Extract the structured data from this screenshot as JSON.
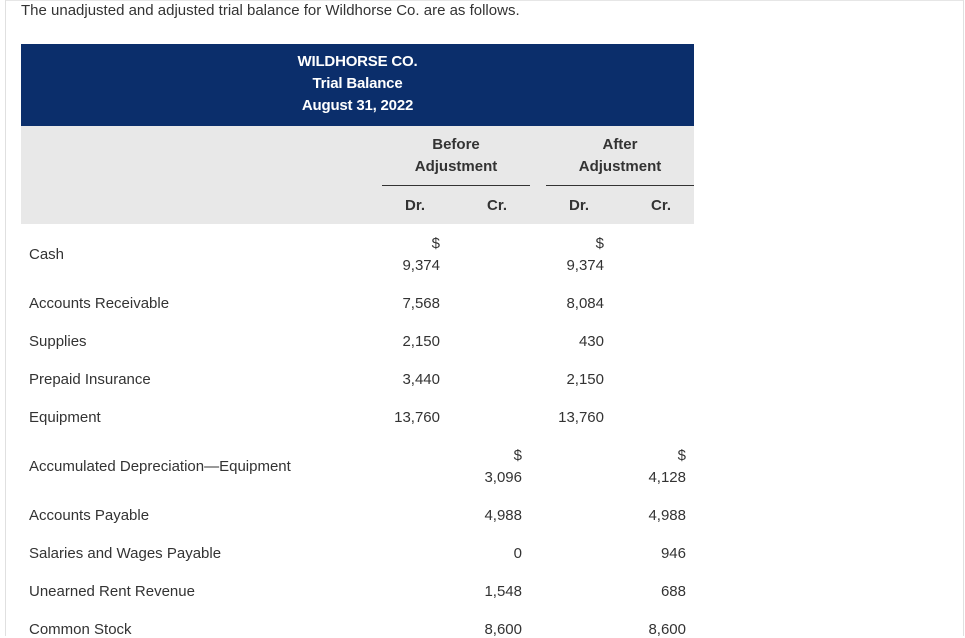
{
  "intro_text": "The unadjusted and adjusted trial balance for Wildhorse Co. are as follows.",
  "header": {
    "company": "WILDHORSE CO.",
    "statement": "Trial Balance",
    "date": "August 31, 2022"
  },
  "columns": {
    "before_line1": "Before",
    "before_line2": "Adjustment",
    "after_line1": "After",
    "after_line2": "Adjustment",
    "dr": "Dr.",
    "cr": "Cr."
  },
  "currency_symbol": "$",
  "rows": [
    {
      "account": "Cash",
      "before_dr": "9,374",
      "before_cr": "",
      "after_dr": "9,374",
      "after_cr": ""
    },
    {
      "account": "Accounts Receivable",
      "before_dr": "7,568",
      "before_cr": "",
      "after_dr": "8,084",
      "after_cr": ""
    },
    {
      "account": "Supplies",
      "before_dr": "2,150",
      "before_cr": "",
      "after_dr": "430",
      "after_cr": ""
    },
    {
      "account": "Prepaid Insurance",
      "before_dr": "3,440",
      "before_cr": "",
      "after_dr": "2,150",
      "after_cr": ""
    },
    {
      "account": "Equipment",
      "before_dr": "13,760",
      "before_cr": "",
      "after_dr": "13,760",
      "after_cr": ""
    },
    {
      "account": "Accumulated Depreciation—Equipment",
      "before_dr": "",
      "before_cr": "3,096",
      "after_dr": "",
      "after_cr": "4,128"
    },
    {
      "account": "Accounts Payable",
      "before_dr": "",
      "before_cr": "4,988",
      "after_dr": "",
      "after_cr": "4,988"
    },
    {
      "account": "Salaries and Wages Payable",
      "before_dr": "",
      "before_cr": "0",
      "after_dr": "",
      "after_cr": "946"
    },
    {
      "account": "Unearned Rent Revenue",
      "before_dr": "",
      "before_cr": "1,548",
      "after_dr": "",
      "after_cr": "688"
    },
    {
      "account": "Common Stock",
      "before_dr": "",
      "before_cr": "8,600",
      "after_dr": "",
      "after_cr": "8,600"
    }
  ]
}
